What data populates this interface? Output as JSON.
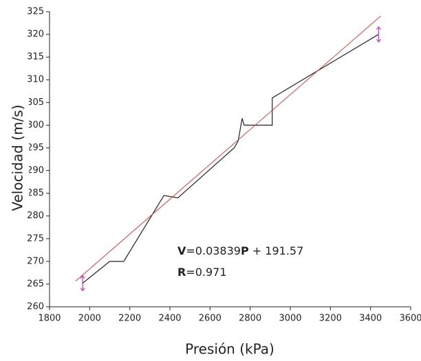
{
  "chart_data": {
    "type": "line",
    "x_label": "Presión (kPa)",
    "y_label": "Velocidad (m/s)",
    "xlim": [
      1800,
      3600
    ],
    "xticks": [
      1800,
      2000,
      2200,
      2400,
      2600,
      2800,
      3000,
      3200,
      3400,
      3600
    ],
    "ylim": [
      260,
      325
    ],
    "yticks": [
      260,
      265,
      270,
      275,
      280,
      285,
      290,
      295,
      300,
      305,
      310,
      315,
      320,
      325
    ],
    "series": [
      {
        "name": "data",
        "color": "#222222",
        "x": [
          1965,
          2100,
          2170,
          2370,
          2440,
          2720,
          2740,
          2760,
          2770,
          2910,
          2910,
          3440
        ],
        "values": [
          265.2,
          270,
          270,
          284.5,
          284,
          295,
          296.5,
          301.5,
          300,
          300,
          306,
          320
        ]
      },
      {
        "name": "fit",
        "color": "#e83a3a",
        "x": [
          1930,
          3450
        ],
        "values": [
          265.66,
          324.02
        ]
      }
    ],
    "annotations": [
      [
        "V",
        "=0.03839",
        "P",
        " + 191.57"
      ],
      [
        "R",
        "=0.971"
      ]
    ]
  }
}
